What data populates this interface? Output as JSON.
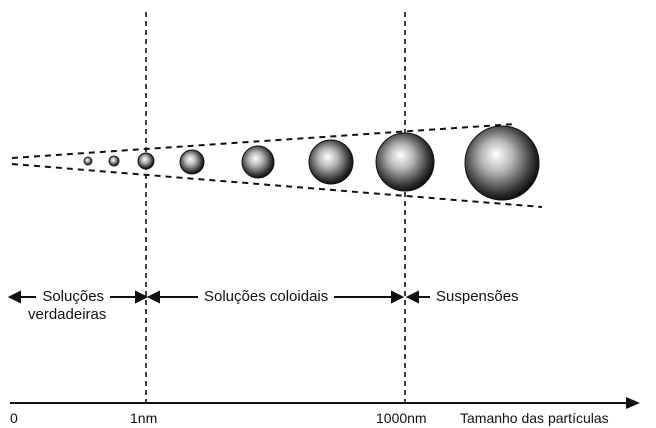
{
  "diagram": {
    "regions": [
      {
        "label_line1": "Soluções",
        "label_line2": "verdadeiras"
      },
      {
        "label_line1": "Soluções coloidais"
      },
      {
        "label_line1": "Suspensões"
      }
    ],
    "axis": {
      "title": "Tamanho das partículas",
      "ticks": [
        "0",
        "1nm",
        "1000nm"
      ]
    },
    "particles_count": 8
  }
}
